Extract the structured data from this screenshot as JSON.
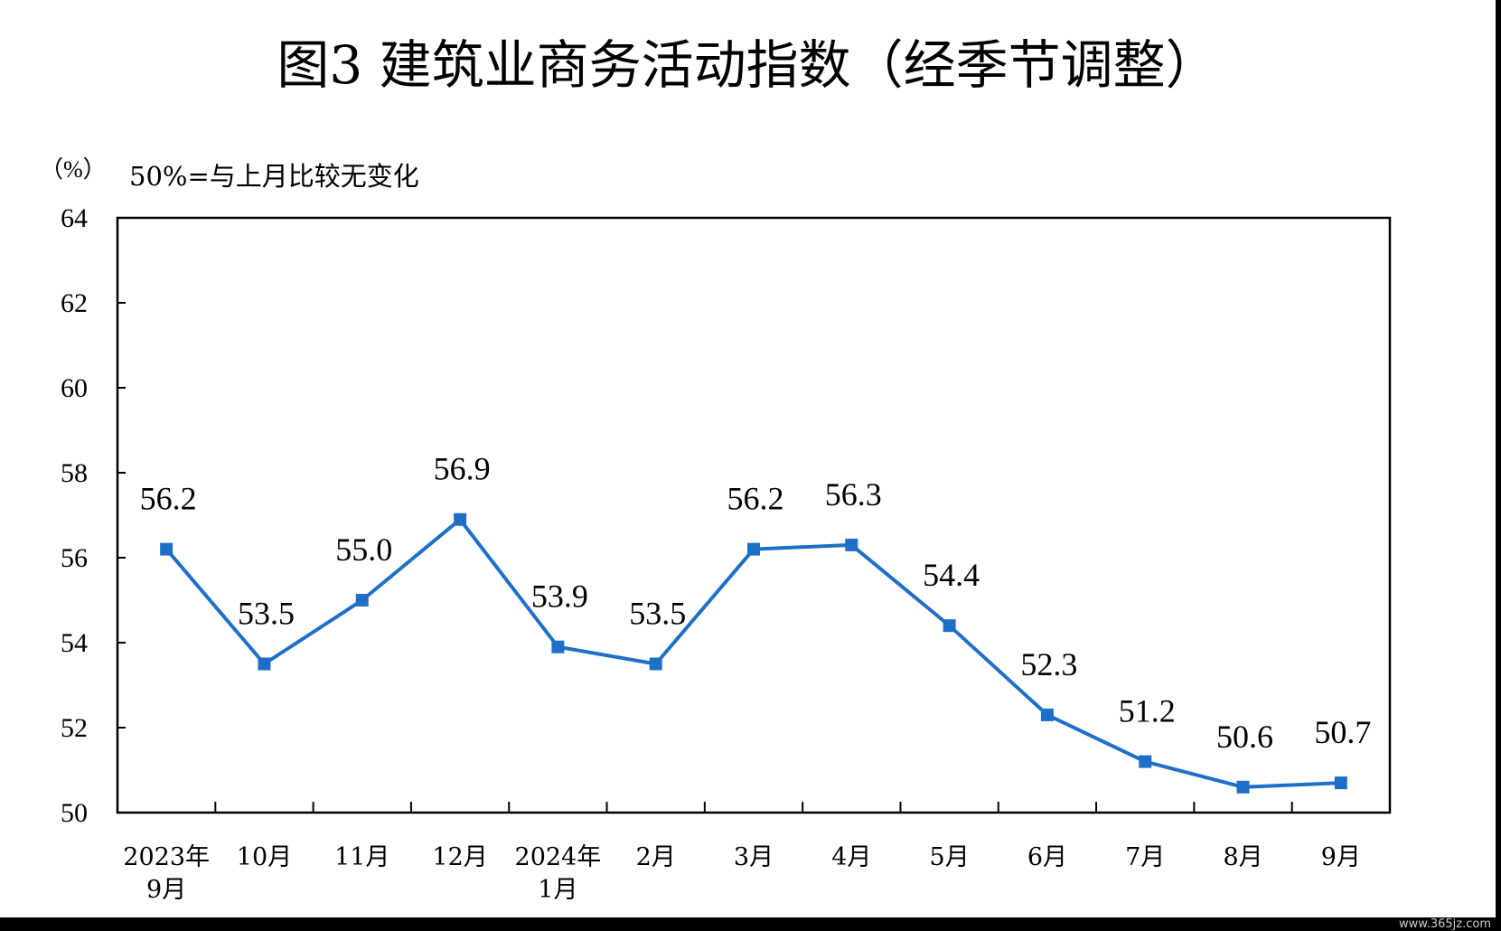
{
  "chart_data": {
    "type": "line",
    "title": "图3  建筑业商务活动指数（经季节调整）",
    "unit_label": "（%）",
    "note": "50%=与上月比较无变化",
    "categories": [
      [
        "2023年",
        "9月"
      ],
      [
        "10月"
      ],
      [
        "11月"
      ],
      [
        "12月"
      ],
      [
        "2024年",
        "1月"
      ],
      [
        "2月"
      ],
      [
        "3月"
      ],
      [
        "4月"
      ],
      [
        "5月"
      ],
      [
        "6月"
      ],
      [
        "7月"
      ],
      [
        "8月"
      ],
      [
        "9月"
      ]
    ],
    "series": [
      {
        "values": [
          56.2,
          53.5,
          55.0,
          56.9,
          53.9,
          53.5,
          56.2,
          56.3,
          54.4,
          52.3,
          51.2,
          50.6,
          50.7
        ]
      }
    ],
    "data_labels": [
      "56.2",
      "53.5",
      "55.0",
      "56.9",
      "53.9",
      "53.5",
      "56.2",
      "56.3",
      "54.4",
      "52.3",
      "51.2",
      "50.6",
      "50.7"
    ],
    "ylim": [
      50,
      64
    ],
    "yticks": [
      50,
      52,
      54,
      56,
      58,
      60,
      62,
      64
    ],
    "grid": false,
    "legend": "none",
    "line_color": "#1f6fc9"
  },
  "watermark": "www.365jz.com"
}
